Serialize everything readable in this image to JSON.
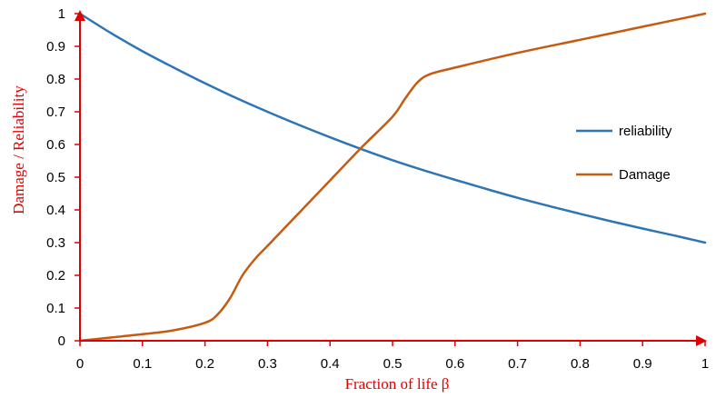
{
  "chart_data": {
    "type": "line",
    "title": "",
    "xlabel": "Fraction of life β",
    "ylabel": "Damage  / Reliability",
    "xlim": [
      0,
      1
    ],
    "ylim": [
      0,
      1
    ],
    "grid": false,
    "legend_position": "right",
    "x_ticks": [
      "0",
      "0.1",
      "0.2",
      "0.3",
      "0.4",
      "0.5",
      "0.6",
      "0.7",
      "0.8",
      "0.9",
      "1"
    ],
    "y_ticks": [
      "0",
      "0.1",
      "0.2",
      "0.3",
      "0.4",
      "0.5",
      "0.6",
      "0.7",
      "0.8",
      "0.9",
      "1"
    ],
    "axis_color": "#e00000",
    "series": [
      {
        "name": "reliability",
        "color": "#2e75b6",
        "x": [
          0,
          0.05,
          0.1,
          0.15,
          0.2,
          0.25,
          0.3,
          0.35,
          0.4,
          0.45,
          0.5,
          0.55,
          0.6,
          0.65,
          0.7,
          0.75,
          0.8,
          0.85,
          0.9,
          0.95,
          1
        ],
        "values": [
          1.0,
          0.94,
          0.885,
          0.835,
          0.787,
          0.742,
          0.7,
          0.66,
          0.622,
          0.586,
          0.552,
          0.521,
          0.492,
          0.464,
          0.437,
          0.412,
          0.388,
          0.365,
          0.343,
          0.322,
          0.3
        ]
      },
      {
        "name": "Damage",
        "color": "#c55a11",
        "x": [
          0,
          0.05,
          0.1,
          0.15,
          0.2,
          0.22,
          0.24,
          0.26,
          0.28,
          0.3,
          0.35,
          0.4,
          0.45,
          0.5,
          0.52,
          0.54,
          0.56,
          0.6,
          0.7,
          0.8,
          0.9,
          1
        ],
        "values": [
          0.0,
          0.01,
          0.02,
          0.032,
          0.055,
          0.08,
          0.13,
          0.2,
          0.25,
          0.29,
          0.39,
          0.49,
          0.59,
          0.685,
          0.74,
          0.79,
          0.815,
          0.835,
          0.88,
          0.92,
          0.96,
          1.0
        ]
      }
    ]
  }
}
